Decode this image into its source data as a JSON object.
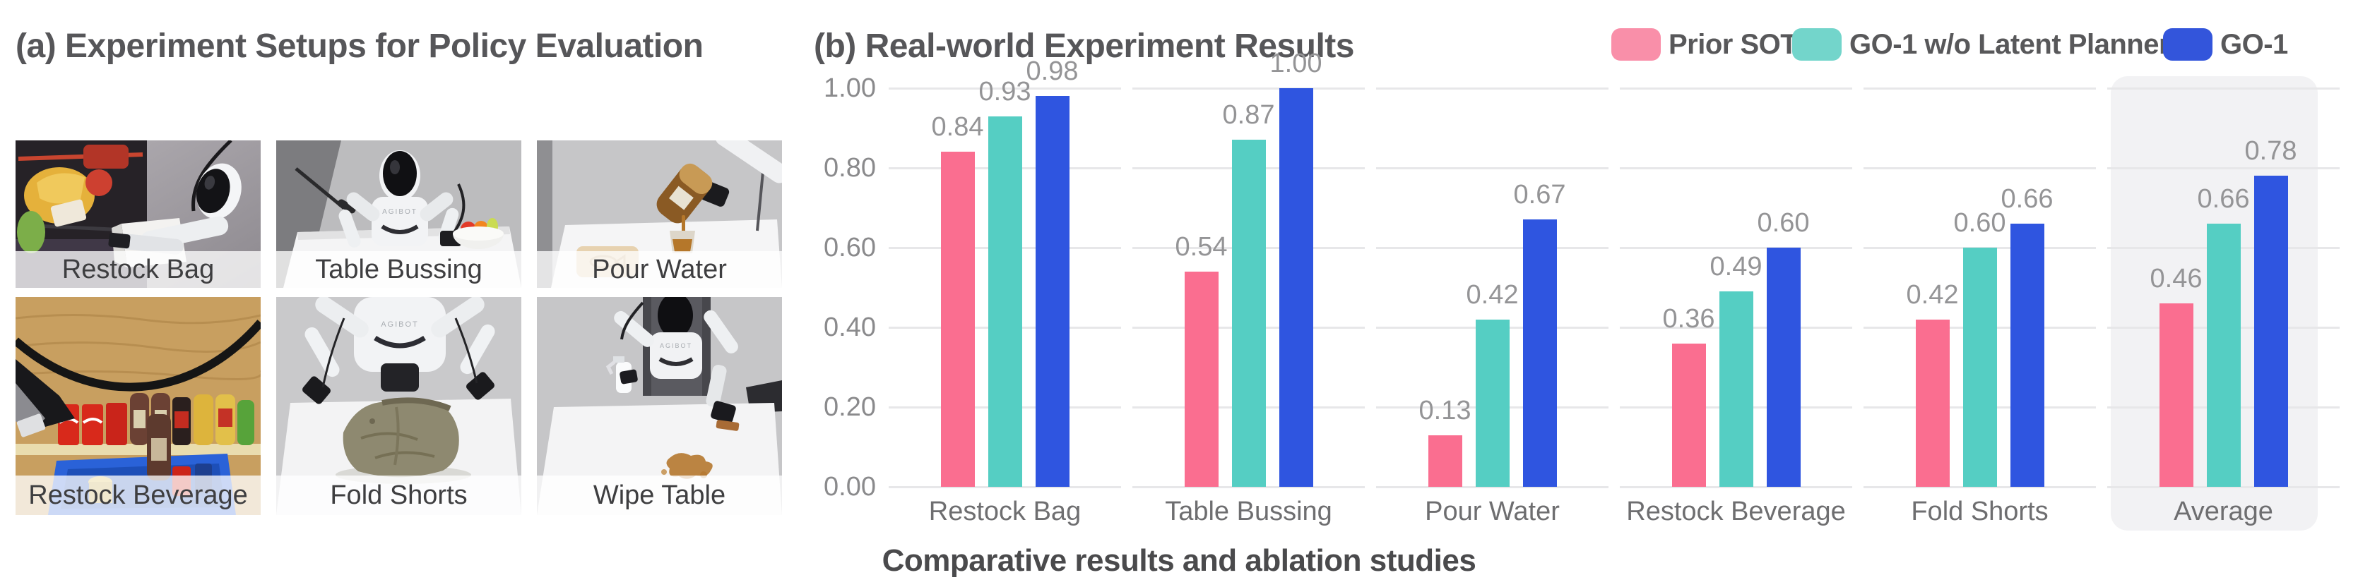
{
  "panel_a": {
    "title": "(a) Experiment Setups for Policy Evaluation",
    "robot_brand": "AGIBOT",
    "tiles": [
      {
        "label": "Restock Bag"
      },
      {
        "label": "Table Bussing"
      },
      {
        "label": "Pour Water"
      },
      {
        "label": "Restock Beverage"
      },
      {
        "label": "Fold Shorts"
      },
      {
        "label": "Wipe Table"
      }
    ]
  },
  "panel_b": {
    "title": "(b) Real-world Experiment Results",
    "caption": "Comparative results and ablation studies"
  },
  "chart_data": {
    "type": "bar",
    "title": "(b) Real-world Experiment Results",
    "categories": [
      "Restock Bag",
      "Table Bussing",
      "Pour Water",
      "Restock Beverage",
      "Fold Shorts",
      "Average"
    ],
    "series": [
      {
        "name": "Prior SOTA",
        "color": "#FA6E90",
        "values": [
          0.84,
          0.54,
          0.13,
          0.36,
          0.42,
          0.46
        ]
      },
      {
        "name": "GO-1 w/o Latent Planner",
        "color": "#55CEC3",
        "values": [
          0.93,
          0.87,
          0.42,
          0.49,
          0.6,
          0.66
        ]
      },
      {
        "name": "GO-1",
        "color": "#2F55E0",
        "values": [
          0.98,
          1.0,
          0.67,
          0.6,
          0.66,
          0.78
        ]
      }
    ],
    "legend_swatch_colors": [
      "#F98FA9",
      "#73D5CB",
      "#3355DB"
    ],
    "value_labels": true,
    "value_label_decimals": 2,
    "xlabel": "",
    "ylabel": "",
    "ylim": [
      0,
      1.0
    ],
    "yticks": [
      0,
      0.2,
      0.4,
      0.6,
      0.8,
      1.0
    ],
    "ytick_labels": [
      "0.00",
      "0.20",
      "0.40",
      "0.60",
      "0.80",
      "1.00"
    ],
    "grid": true,
    "grid_style": "segmented-per-category",
    "legend_position": "top-right",
    "highlight_category": "Average"
  }
}
